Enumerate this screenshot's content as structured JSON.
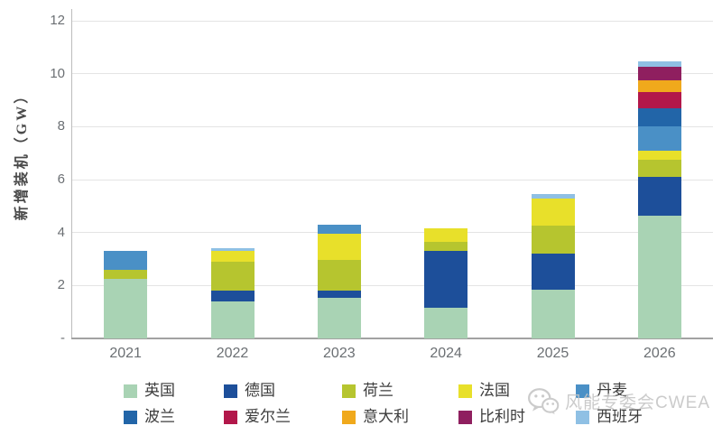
{
  "chart_data": {
    "type": "bar",
    "stacked": true,
    "ylabel": "新增装机（GW）",
    "xlabel": "",
    "ylim": [
      0,
      12
    ],
    "y_ticks": [
      0,
      2,
      4,
      6,
      8,
      10,
      12
    ],
    "y_tick_labels": [
      "-",
      "2",
      "4",
      "6",
      "8",
      "10",
      "12"
    ],
    "grid": true,
    "legend_position": "bottom",
    "categories": [
      "2021",
      "2022",
      "2023",
      "2024",
      "2025",
      "2026"
    ],
    "series": [
      {
        "name": "英国",
        "color": "#a9d3b4",
        "values": [
          2.25,
          1.4,
          1.55,
          1.15,
          1.85,
          4.65
        ]
      },
      {
        "name": "德国",
        "color": "#1d4f9a",
        "values": [
          0,
          0.4,
          0.25,
          2.15,
          1.35,
          1.45
        ]
      },
      {
        "name": "荷兰",
        "color": "#b6c52f",
        "values": [
          0.35,
          1.1,
          1.15,
          0.35,
          1.05,
          0.65
        ]
      },
      {
        "name": "法国",
        "color": "#e8e02a",
        "values": [
          0,
          0.4,
          1.0,
          0.5,
          1.05,
          0.35
        ]
      },
      {
        "name": "丹麦",
        "color": "#4a90c6",
        "values": [
          0.7,
          0,
          0.35,
          0,
          0,
          0.9
        ]
      },
      {
        "name": "波兰",
        "color": "#2265a8",
        "values": [
          0,
          0,
          0,
          0,
          0,
          0.7
        ]
      },
      {
        "name": "爱尔兰",
        "color": "#b2174a",
        "values": [
          0,
          0,
          0,
          0,
          0,
          0.6
        ]
      },
      {
        "name": "意大利",
        "color": "#f0a91c",
        "values": [
          0,
          0,
          0,
          0,
          0,
          0.45
        ]
      },
      {
        "name": "比利时",
        "color": "#8f1f5f",
        "values": [
          0,
          0,
          0,
          0,
          0,
          0.5
        ]
      },
      {
        "name": "西班牙",
        "color": "#8fc0e4",
        "values": [
          0,
          0.1,
          0,
          0,
          0.15,
          0.2
        ]
      }
    ]
  },
  "watermark": {
    "text": "风能专委会CWEA",
    "icon": "wechat-icon",
    "color": "#c6c6c6"
  },
  "colors": {
    "grid": "#e4e4e4",
    "axis_line": "#a2a2a2",
    "tick_text": "#6b6f73",
    "legend_text": "#3c3c3c"
  }
}
